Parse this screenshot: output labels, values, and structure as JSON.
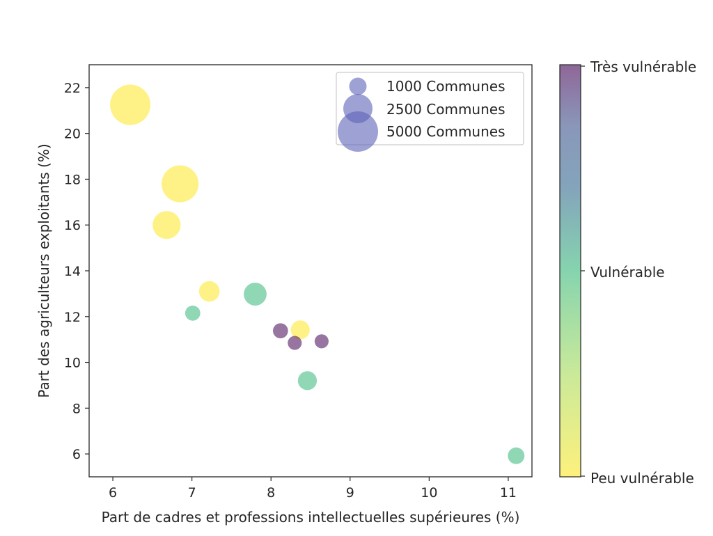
{
  "chart_data": {
    "type": "scatter",
    "xlabel": "Part de cadres et professions intellectuelles supérieures (%)",
    "ylabel": "Part des agriculteurs exploitants (%)",
    "xlim": [
      5.7,
      11.3
    ],
    "ylim": [
      5.0,
      23.0
    ],
    "xticks": [
      "6",
      "7",
      "8",
      "9",
      "10",
      "11"
    ],
    "yticks": [
      "6",
      "8",
      "10",
      "12",
      "14",
      "16",
      "18",
      "20",
      "22"
    ],
    "size_unit": "Communes",
    "points": [
      {
        "x": 6.22,
        "y": 21.25,
        "communes": 5000,
        "vulnerability": 0.0
      },
      {
        "x": 6.85,
        "y": 17.8,
        "communes": 4200,
        "vulnerability": 0.0
      },
      {
        "x": 6.68,
        "y": 16.0,
        "communes": 2400,
        "vulnerability": 0.0
      },
      {
        "x": 7.22,
        "y": 13.1,
        "communes": 1300,
        "vulnerability": 0.0
      },
      {
        "x": 7.01,
        "y": 12.15,
        "communes": 700,
        "vulnerability": 0.5
      },
      {
        "x": 7.8,
        "y": 12.98,
        "communes": 1600,
        "vulnerability": 0.5
      },
      {
        "x": 8.37,
        "y": 11.42,
        "communes": 1100,
        "vulnerability": 0.0
      },
      {
        "x": 8.12,
        "y": 11.38,
        "communes": 700,
        "vulnerability": 1.0
      },
      {
        "x": 8.3,
        "y": 10.85,
        "communes": 600,
        "vulnerability": 1.0
      },
      {
        "x": 8.64,
        "y": 10.92,
        "communes": 600,
        "vulnerability": 1.0
      },
      {
        "x": 8.46,
        "y": 9.2,
        "communes": 1100,
        "vulnerability": 0.5
      },
      {
        "x": 11.1,
        "y": 5.92,
        "communes": 850,
        "vulnerability": 0.5
      }
    ],
    "legend": {
      "position": "top-right",
      "entries": [
        {
          "communes": 1000,
          "label": "1000 Communes"
        },
        {
          "communes": 2500,
          "label": "2500 Communes"
        },
        {
          "communes": 5000,
          "label": "5000 Communes"
        }
      ],
      "marker_color": "#5b63b8"
    },
    "colorbar": {
      "labels": [
        "Peu vulnérable",
        "Vulnérable",
        "Très vulnérable"
      ],
      "stops": [
        "#fde725",
        "#35b779",
        "#31688e",
        "#3b528b",
        "#440154"
      ],
      "alpha": 0.6
    }
  }
}
